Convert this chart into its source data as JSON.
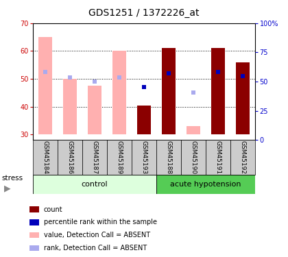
{
  "title": "GDS1251 / 1372226_at",
  "samples": [
    "GSM45184",
    "GSM45186",
    "GSM45187",
    "GSM45189",
    "GSM45193",
    "GSM45188",
    "GSM45190",
    "GSM45191",
    "GSM45192"
  ],
  "n_control": 5,
  "n_hypotension": 4,
  "ylim_left": [
    28,
    70
  ],
  "ylim_right": [
    0,
    100
  ],
  "yticks_left": [
    30,
    40,
    50,
    60,
    70
  ],
  "yticks_right": [
    0,
    25,
    50,
    75,
    100
  ],
  "ytick_labels_right": [
    "0",
    "25",
    "50",
    "75",
    "100%"
  ],
  "bar_bottom": 30,
  "absent_value_tops": [
    65,
    50,
    47.5,
    60,
    null,
    null,
    33,
    null,
    null
  ],
  "present_count_tops": [
    null,
    null,
    null,
    null,
    40.5,
    61,
    null,
    61,
    56
  ],
  "absent_rank_vals": [
    52.5,
    50.5,
    49,
    50.5,
    null,
    null,
    45,
    null,
    null
  ],
  "present_rank_vals": [
    null,
    null,
    null,
    null,
    47,
    52,
    null,
    52.5,
    51
  ],
  "color_absent_bar": "#ffb0b0",
  "color_present_bar": "#8b0000",
  "color_absent_rank": "#aaaaee",
  "color_present_rank": "#0000bb",
  "color_group_control_bg": "#ddffdd",
  "color_group_hypotension_bg": "#55cc55",
  "color_left_axis": "#cc0000",
  "color_right_axis": "#0000cc",
  "color_sample_box": "#cccccc",
  "group_label_control": "control",
  "group_label_hypotension": "acute hypotension",
  "stress_label": "stress",
  "legend_items": [
    {
      "color": "#8b0000",
      "label": "count"
    },
    {
      "color": "#0000bb",
      "label": "percentile rank within the sample"
    },
    {
      "color": "#ffb0b0",
      "label": "value, Detection Call = ABSENT"
    },
    {
      "color": "#aaaaee",
      "label": "rank, Detection Call = ABSENT"
    }
  ],
  "title_fontsize": 10,
  "axis_tick_fontsize": 7,
  "sample_label_fontsize": 6.5,
  "group_label_fontsize": 8,
  "legend_fontsize": 7,
  "stress_fontsize": 7.5
}
